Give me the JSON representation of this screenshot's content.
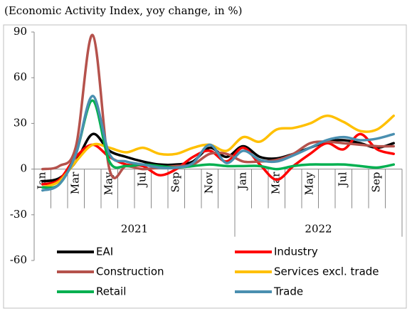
{
  "chart_data": {
    "type": "line",
    "title": "(Economic Activity Index, yoy change, in %)",
    "categories": [
      "Jan",
      null,
      "Mar",
      null,
      "May",
      null,
      "Jul",
      null,
      "Sep",
      null,
      "Nov",
      null,
      "Jan",
      null,
      "Mar",
      null,
      "May",
      null,
      "Jul",
      null,
      "Sep",
      null
    ],
    "groups": [
      {
        "name": "2021",
        "count": 12
      },
      {
        "name": "2022",
        "count": 10
      }
    ],
    "ylim": [
      -60,
      90
    ],
    "yticks": [
      90,
      60,
      30,
      0,
      -30,
      -60
    ],
    "series": [
      {
        "name": "EAI",
        "color": "#000000",
        "values": [
          -8,
          -6,
          5,
          23,
          12,
          8,
          5,
          3,
          3,
          5,
          14,
          8,
          15,
          8,
          7,
          10,
          14,
          18,
          19,
          17,
          14,
          17
        ]
      },
      {
        "name": "Industry",
        "color": "#ff0000",
        "values": [
          -10,
          -7,
          8,
          16,
          8,
          3,
          2,
          -4,
          0,
          8,
          12,
          5,
          14,
          3,
          -7,
          2,
          10,
          17,
          13,
          23,
          13,
          10
        ]
      },
      {
        "name": "Construction",
        "color": "#b5524c",
        "values": [
          0,
          2,
          15,
          88,
          0,
          2,
          0,
          1,
          2,
          3,
          10,
          10,
          5,
          5,
          6,
          10,
          17,
          18,
          17,
          16,
          15,
          15
        ]
      },
      {
        "name": "Services excl. trade",
        "color": "#ffc000",
        "values": [
          -12,
          -8,
          5,
          16,
          14,
          11,
          14,
          10,
          10,
          14,
          16,
          12,
          21,
          18,
          26,
          27,
          30,
          35,
          31,
          25,
          26,
          35
        ]
      },
      {
        "name": "Retail",
        "color": "#00b050",
        "values": [
          -12,
          -10,
          10,
          45,
          5,
          2,
          3,
          2,
          1,
          2,
          3,
          2,
          2,
          2,
          0,
          2,
          3,
          3,
          3,
          2,
          1,
          3
        ]
      },
      {
        "name": "Trade",
        "color": "#4a8fb0",
        "values": [
          -14,
          -10,
          10,
          48,
          10,
          5,
          3,
          1,
          1,
          4,
          16,
          4,
          12,
          6,
          5,
          9,
          14,
          19,
          21,
          19,
          20,
          23
        ]
      }
    ]
  }
}
